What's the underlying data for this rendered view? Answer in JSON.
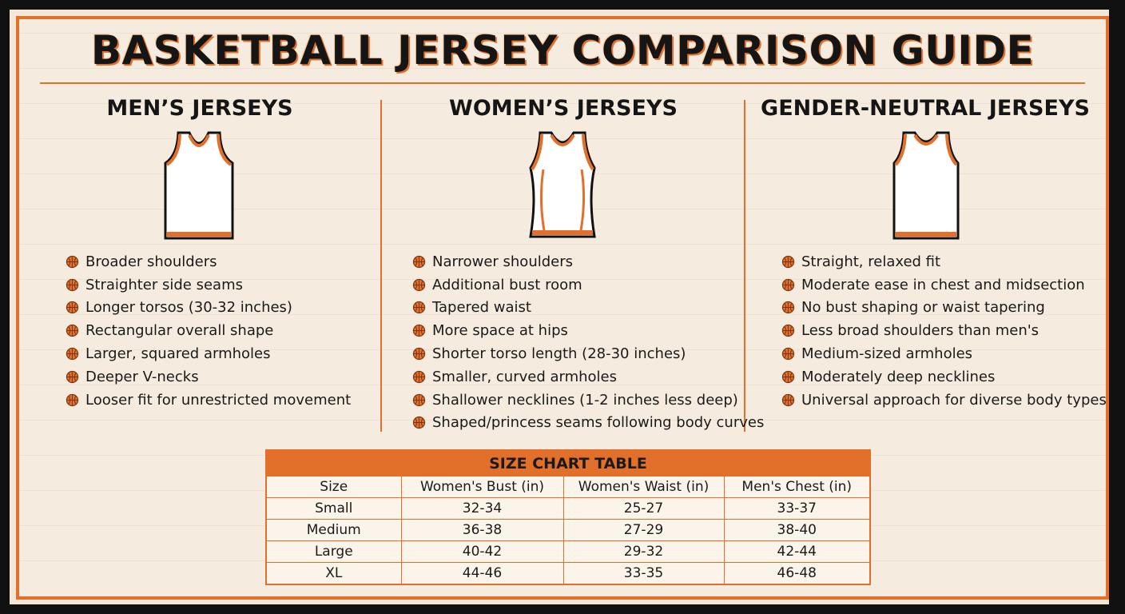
{
  "title": "BASKETBALL JERSEY COMPARISON GUIDE",
  "columns": [
    {
      "heading": "MEN’S JERSEYS",
      "items": [
        "Broader shoulders",
        "Straighter side seams",
        "Longer torsos (30-32 inches)",
        "Rectangular overall shape",
        "Larger, squared armholes",
        "Deeper V-necks",
        "Looser fit for unrestricted movement"
      ]
    },
    {
      "heading": "WOMEN’S JERSEYS",
      "items": [
        "Narrower shoulders",
        "Additional bust room",
        "Tapered waist",
        "More space at hips",
        "Shorter torso length (28-30 inches)",
        "Smaller, curved armholes",
        "Shallower necklines (1-2 inches less deep)",
        "Shaped/princess seams following body curves"
      ]
    },
    {
      "heading": "GENDER-NEUTRAL JERSEYS",
      "items": [
        "Straight, relaxed fit",
        "Moderate ease in chest and midsection",
        "No bust shaping or waist tapering",
        "Less broad shoulders than men's",
        "Medium-sized armholes",
        "Moderately deep necklines",
        "Universal approach for diverse body types"
      ]
    }
  ],
  "size_chart": {
    "title": "SIZE CHART TABLE",
    "headers": [
      "Size",
      "Women's Bust (in)",
      "Women's Waist (in)",
      "Men's Chest (in)"
    ],
    "rows": [
      [
        "Small",
        "32-34",
        "25-27",
        "33-37"
      ],
      [
        "Medium",
        "36-38",
        "27-29",
        "38-40"
      ],
      [
        "Large",
        "40-42",
        "29-32",
        "42-44"
      ],
      [
        "XL",
        "44-46",
        "33-35",
        "46-48"
      ]
    ]
  }
}
